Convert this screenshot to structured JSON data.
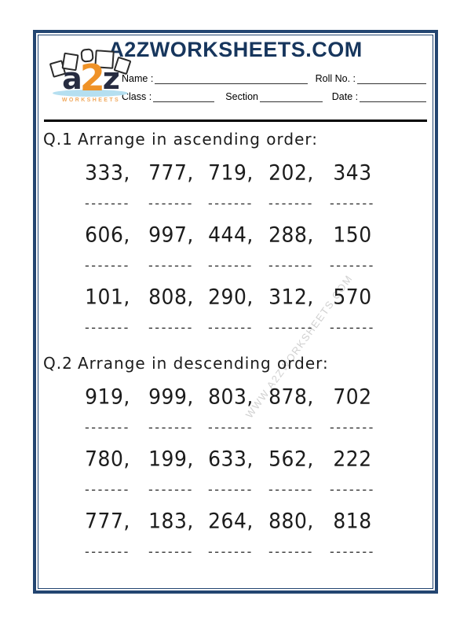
{
  "header": {
    "site_title": "A2ZWORKSHEETS.COM",
    "logo": {
      "a": "a",
      "two": "2",
      "z": "z",
      "subtext": "WORKSHEETS"
    },
    "fields": {
      "name_label": "Name :",
      "roll_label": "Roll No. :",
      "class_label": "Class :",
      "section_label": "Section",
      "date_label": "Date :"
    }
  },
  "watermark": "WWW.A2ZWORKSHEETS.COM",
  "answers": {
    "blank": "-------"
  },
  "q1": {
    "number": "Q.1",
    "title": "Arrange in ascending order:",
    "rows": [
      [
        "333,",
        "777,",
        "719,",
        "202,",
        "343"
      ],
      [
        "606,",
        "997,",
        "444,",
        "288,",
        "150"
      ],
      [
        "101,",
        "808,",
        "290,",
        "312,",
        "570"
      ]
    ]
  },
  "q2": {
    "number": "Q.2",
    "title": "Arrange in descending order:",
    "rows": [
      [
        "919,",
        "999,",
        "803,",
        "878,",
        "702"
      ],
      [
        "780,",
        "199,",
        "633,",
        "562,",
        "222"
      ],
      [
        "777,",
        "183,",
        "264,",
        "880,",
        "818"
      ]
    ]
  },
  "colors": {
    "border_navy": "#234571",
    "title_navy": "#17365d",
    "logo_orange": "#ef9227",
    "watermark_gray": "#c2c2c2"
  }
}
